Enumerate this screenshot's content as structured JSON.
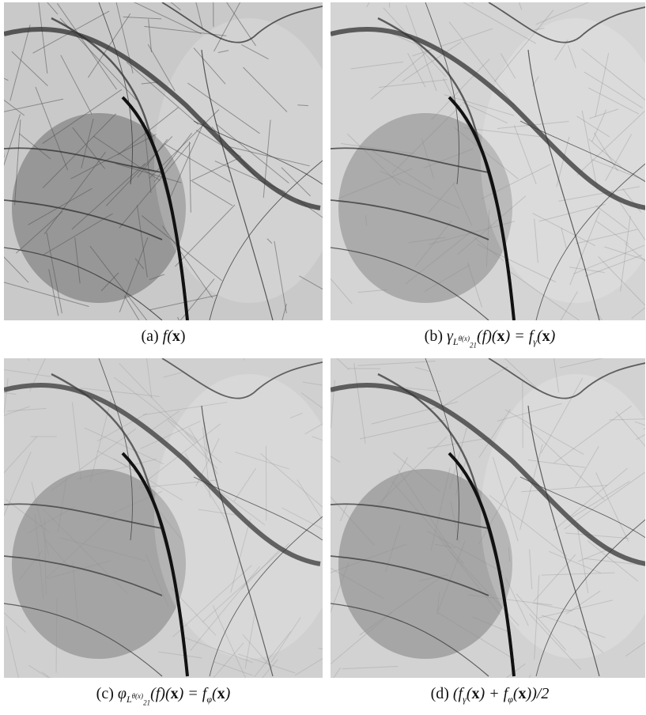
{
  "panels": [
    {
      "label": "(a)",
      "caption": [
        "f(",
        "x",
        ")"
      ]
    },
    {
      "label": "(b)",
      "caption": [
        "γ",
        "L",
        "θ(x)",
        "21",
        "(f)(",
        "x",
        ") = f",
        "γ",
        "(",
        "x",
        ")"
      ]
    },
    {
      "label": "(c)",
      "caption": [
        "φ",
        "L",
        "θ(x)",
        "21",
        "(f)(",
        "x",
        ") = f",
        "φ",
        "(",
        "x",
        ")"
      ]
    },
    {
      "label": "(d)",
      "caption": [
        "(f",
        "γ",
        "(",
        "x",
        ") + f",
        "φ",
        "(",
        "x",
        "))/2"
      ]
    }
  ]
}
